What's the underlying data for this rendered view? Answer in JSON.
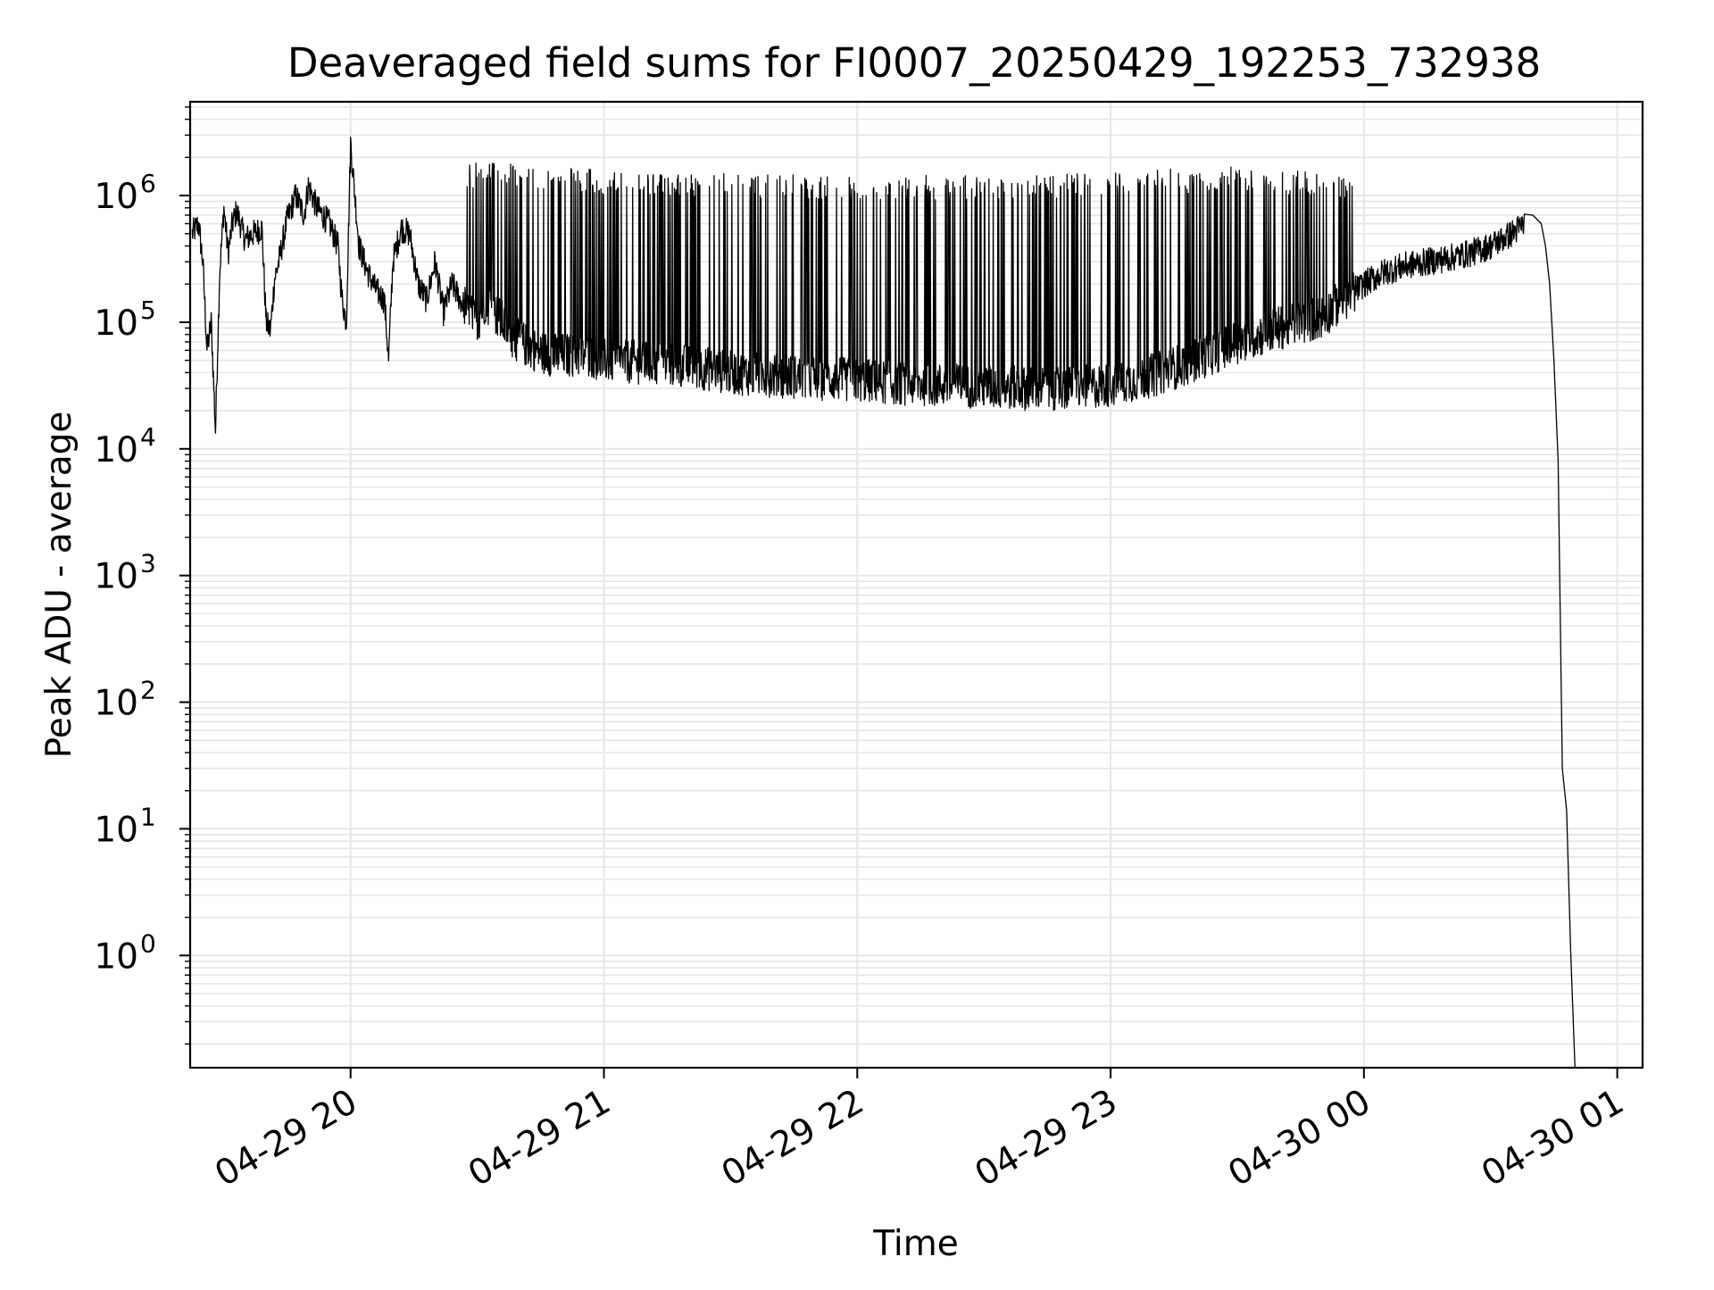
{
  "chart_data": {
    "type": "line",
    "title": "Deaveraged field sums for FI0007_20250429_192253_732938",
    "xlabel": "Time",
    "ylabel": "Peak ADU - average",
    "yscale": "log",
    "xlim": [
      "2025-04-29 19:22",
      "2025-04-30 01:06"
    ],
    "ylim": [
      0.13,
      5500000
    ],
    "grid": true,
    "line_color": "#000000",
    "grid_color": "#e6e6e6",
    "x_ticks": [
      {
        "value": "2025-04-29 20:00",
        "label": "04-29 20"
      },
      {
        "value": "2025-04-29 21:00",
        "label": "04-29 21"
      },
      {
        "value": "2025-04-29 22:00",
        "label": "04-29 22"
      },
      {
        "value": "2025-04-29 23:00",
        "label": "04-29 23"
      },
      {
        "value": "2025-04-30 00:00",
        "label": "04-30 00"
      },
      {
        "value": "2025-04-30 01:00",
        "label": "04-30 01"
      }
    ],
    "y_ticks": [
      {
        "value": 1,
        "base": "10",
        "exp": "0"
      },
      {
        "value": 10,
        "base": "10",
        "exp": "1"
      },
      {
        "value": 100,
        "base": "10",
        "exp": "2"
      },
      {
        "value": 1000,
        "base": "10",
        "exp": "3"
      },
      {
        "value": 10000,
        "base": "10",
        "exp": "4"
      },
      {
        "value": 100000,
        "base": "10",
        "exp": "5"
      },
      {
        "value": 1000000,
        "base": "10",
        "exp": "6"
      }
    ],
    "series": [
      {
        "x": [
          "2025-04-29 19:22:30",
          "2025-04-29 19:24",
          "2025-04-29 19:25",
          "2025-04-29 19:26",
          "2025-04-29 19:27",
          "2025-04-29 19:28",
          "2025-04-29 19:29",
          "2025-04-29 19:30",
          "2025-04-29 19:31",
          "2025-04-29 19:32",
          "2025-04-29 19:33",
          "2025-04-29 19:35",
          "2025-04-29 19:37",
          "2025-04-29 19:39",
          "2025-04-29 19:40",
          "2025-04-29 19:41",
          "2025-04-29 19:42",
          "2025-04-29 19:43",
          "2025-04-29 19:45",
          "2025-04-29 19:47",
          "2025-04-29 19:49",
          "2025-04-29 19:50",
          "2025-04-29 19:52",
          "2025-04-29 19:55",
          "2025-04-29 19:57",
          "2025-04-29 19:58",
          "2025-04-29 19:59",
          "2025-04-29 20:00",
          "2025-04-29 20:02",
          "2025-04-29 20:04",
          "2025-04-29 20:06",
          "2025-04-29 20:08",
          "2025-04-29 20:09",
          "2025-04-29 20:10",
          "2025-04-29 20:12",
          "2025-04-29 20:14",
          "2025-04-29 20:16",
          "2025-04-29 20:18",
          "2025-04-29 20:20",
          "2025-04-29 20:22",
          "2025-04-29 20:24",
          "2025-04-29 20:26",
          "2025-04-29 20:28",
          "2025-04-29 20:30",
          "2025-04-29 20:32",
          "2025-04-29 20:34",
          "2025-04-29 20:36",
          "2025-04-29 20:38",
          "2025-04-29 20:40",
          "2025-04-29 20:44",
          "2025-04-29 20:48",
          "2025-04-29 20:52",
          "2025-04-29 20:56",
          "2025-04-29 21:00",
          "2025-04-29 21:10",
          "2025-04-29 21:20",
          "2025-04-29 21:30",
          "2025-04-29 21:40",
          "2025-04-29 21:50",
          "2025-04-29 22:00",
          "2025-04-29 22:10",
          "2025-04-29 22:20",
          "2025-04-29 22:30",
          "2025-04-29 22:40",
          "2025-04-29 22:50",
          "2025-04-29 23:00",
          "2025-04-29 23:10",
          "2025-04-29 23:20",
          "2025-04-29 23:30",
          "2025-04-29 23:40",
          "2025-04-29 23:50",
          "2025-04-29 23:55",
          "2025-04-30 00:00",
          "2025-04-30 00:05",
          "2025-04-30 00:10",
          "2025-04-30 00:15",
          "2025-04-30 00:20",
          "2025-04-30 00:25",
          "2025-04-30 00:30",
          "2025-04-30 00:35",
          "2025-04-30 00:38",
          "2025-04-30 00:40",
          "2025-04-30 00:42",
          "2025-04-30 00:43",
          "2025-04-30 00:44",
          "2025-04-30 00:45",
          "2025-04-30 00:46",
          "2025-04-30 00:47",
          "2025-04-30 00:48",
          "2025-04-30 00:49",
          "2025-04-30 00:50",
          "2025-04-30 00:51",
          "2025-04-30 00:52",
          "2025-04-30 00:53"
        ],
        "y": [
          500000,
          600000,
          300000,
          60000,
          100000,
          14000,
          250000,
          800000,
          350000,
          600000,
          750000,
          450000,
          500000,
          550000,
          100000,
          85000,
          220000,
          300000,
          650000,
          1000000,
          700000,
          1200000,
          800000,
          600000,
          400000,
          150000,
          100000,
          2600000,
          400000,
          250000,
          180000,
          150000,
          50000,
          300000,
          550000,
          500000,
          200000,
          150000,
          300000,
          120000,
          200000,
          150000,
          120000,
          100000,
          150000,
          120000,
          100000,
          80000,
          70000,
          60000,
          55000,
          55000,
          55000,
          50000,
          48000,
          45000,
          40000,
          38000,
          36000,
          35000,
          33000,
          32000,
          31000,
          30000,
          30000,
          32000,
          38000,
          50000,
          70000,
          90000,
          110000,
          150000,
          200000,
          250000,
          280000,
          300000,
          320000,
          350000,
          400000,
          500000,
          600000,
          700000,
          600000,
          400000,
          200000,
          50000,
          8000,
          30,
          14,
          1,
          0.13,
          0.13,
          0.13,
          0.13
        ]
      }
    ],
    "spikes": {
      "x_start": "2025-04-29 20:27",
      "x_end": "2025-04-29 23:58",
      "upper": [
        {
          "x": "2025-04-29 20:40",
          "y": 1800000
        },
        {
          "x": "2025-04-29 21:00",
          "y": 1600000
        },
        {
          "x": "2025-04-29 21:30",
          "y": 1500000
        },
        {
          "x": "2025-04-29 22:00",
          "y": 1450000
        },
        {
          "x": "2025-04-29 22:30",
          "y": 1450000
        },
        {
          "x": "2025-04-29 23:00",
          "y": 1550000
        },
        {
          "x": "2025-04-29 23:30",
          "y": 1700000
        },
        {
          "x": "2025-04-29 23:58",
          "y": 1500000
        }
      ]
    }
  }
}
